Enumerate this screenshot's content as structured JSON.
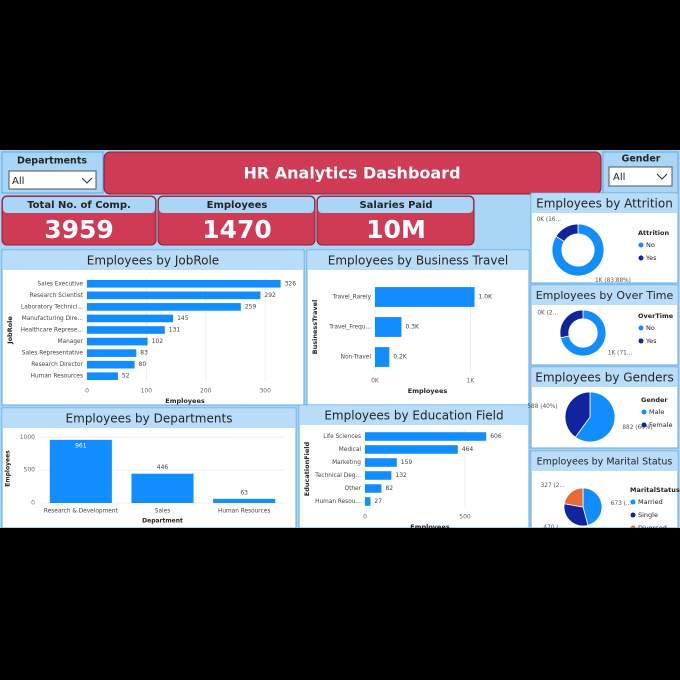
{
  "header": {
    "title": "HR Analytics Dashboard"
  },
  "slicers": [
    {
      "label": "Departments",
      "value": "All"
    },
    {
      "label": "Gender",
      "value": "All"
    }
  ],
  "kpis": [
    {
      "label": "Total No. of Comp.",
      "value": 3959
    },
    {
      "label": "Employees",
      "value": 1470
    },
    {
      "label": "Salaries Paid",
      "value": "10M"
    }
  ],
  "chart_data": [
    {
      "type": "bar",
      "orientation": "horizontal",
      "title": "Employees by JobRole",
      "categories": [
        "Sales Executive",
        "Research Scientist",
        "Laboratory Technici...",
        "Manufacturing Dire...",
        "Healthcare Represe...",
        "Manager",
        "Sales Representative",
        "Research Director",
        "Human Resources"
      ],
      "values": [
        326,
        292,
        259,
        145,
        131,
        102,
        83,
        80,
        52
      ],
      "color": "#118dff",
      "xlim": [
        0,
        330
      ],
      "xticks": [
        0,
        100,
        200,
        300
      ],
      "x_label": "Employees",
      "y_label": "JobRole",
      "grid": true
    },
    {
      "type": "bar",
      "orientation": "horizontal",
      "title": "Employees by Business Travel",
      "categories": [
        "Travel_Rarely",
        "Travel_Frequ...",
        "Non-Travel"
      ],
      "values": [
        1043,
        277,
        150
      ],
      "value_labels": [
        "1.0K",
        "0.3K",
        "0.2K"
      ],
      "color": "#118dff",
      "xlim": [
        0,
        1100
      ],
      "xticks": [
        {
          "value": 0,
          "label": "0K"
        },
        {
          "value": 1000,
          "label": "1K"
        }
      ],
      "x_label": "Employees",
      "y_label": "BusinessTravel",
      "grid": true
    },
    {
      "type": "bar",
      "orientation": "vertical",
      "title": "Employees by Departments",
      "categories": [
        "Research & Development",
        "Sales",
        "Human Resources"
      ],
      "values": [
        961,
        446,
        63
      ],
      "color": "#118dff",
      "ylim": [
        0,
        1050
      ],
      "yticks": [
        0,
        500,
        1000
      ],
      "x_label": "Department",
      "y_label": "Employees",
      "grid": true
    },
    {
      "type": "bar",
      "orientation": "horizontal",
      "title": "Employees by Education Field",
      "categories": [
        "Life Sciences",
        "Medical",
        "Marketing",
        "Technical Deg...",
        "Other",
        "Human Resou..."
      ],
      "values": [
        606,
        464,
        159,
        132,
        82,
        27
      ],
      "color": "#118dff",
      "xlim": [
        0,
        650
      ],
      "xticks": [
        0,
        500
      ],
      "x_label": "Employees",
      "y_label": "EducationField",
      "grid": true
    },
    {
      "type": "donut",
      "title": "Employees by Attrition",
      "legend_title": "Attrition",
      "categories": [
        "No",
        "Yes"
      ],
      "values": [
        1233,
        237
      ],
      "value_labels": [
        "1K (83.88%)",
        "0K (16..."
      ],
      "colors": [
        "#118dff",
        "#12239e"
      ]
    },
    {
      "type": "donut",
      "title": "Employees by Over Time",
      "legend_title": "OverTime",
      "categories": [
        "No",
        "Yes"
      ],
      "values": [
        1054,
        416
      ],
      "value_labels": [
        "1K (71...",
        "0K (2..."
      ],
      "colors": [
        "#118dff",
        "#12239e"
      ]
    },
    {
      "type": "pie",
      "title": "Employees by Genders",
      "legend_title": "Gender",
      "categories": [
        "Male",
        "Female"
      ],
      "values": [
        882,
        588
      ],
      "value_labels": [
        "882 (60%)",
        "588 (40%)"
      ],
      "colors": [
        "#118dff",
        "#12239e"
      ]
    },
    {
      "type": "pie",
      "title": "Employees by Marital Status",
      "legend_title": "MaritalStatus",
      "categories": [
        "Married",
        "Single",
        "Divorced"
      ],
      "values": [
        673,
        470,
        327
      ],
      "value_labels": [
        "673 (...",
        "470 (...",
        "327 (2..."
      ],
      "colors": [
        "#118dff",
        "#12239e",
        "#e66c37"
      ]
    }
  ]
}
